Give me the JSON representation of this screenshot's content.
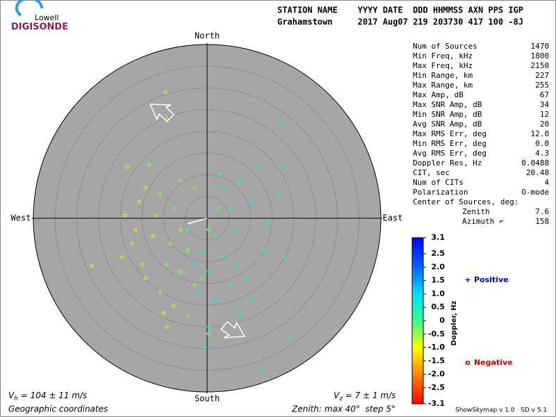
{
  "header": {
    "logo_top": "Lowell",
    "logo_main": "DIGISONDE",
    "line1": "STATION NAME    YYYY DATE  DDD HHMMSS AXN PPS IGP",
    "line2": "Grahamstown     2017 Aug07 219 203730 417 100 -8J"
  },
  "stats": {
    "rows": [
      [
        "Num of Sources",
        "1470"
      ],
      [
        "Min Freq, kHz",
        "1800"
      ],
      [
        "Max Freq, kHz",
        "2150"
      ],
      [
        "Min Range, km",
        "227"
      ],
      [
        "Max Range, km",
        "255"
      ],
      [
        "Max Amp, dB",
        "67"
      ],
      [
        "Max SNR Amp, dB",
        "34"
      ],
      [
        "Min SNR Amp, dB",
        "12"
      ],
      [
        "Avg SNR Amp, dB",
        "20"
      ],
      [
        "Max RMS Err, deg",
        "12.0"
      ],
      [
        "Min RMS Err, deg",
        "0.0"
      ],
      [
        "Avg RMS Err, deg",
        "4.3"
      ],
      [
        "Doppler Res, Hz",
        "0.0488"
      ],
      [
        "CIT, sec",
        "20.48"
      ],
      [
        "Num of CITs",
        "4"
      ],
      [
        "Polarization",
        "O-mode"
      ]
    ],
    "center_title": "Center of Sources, deg:",
    "center_rows": [
      [
        "Zenith",
        "7.6"
      ],
      [
        "Azimuth ↶",
        "158"
      ]
    ]
  },
  "chart_data": {
    "type": "skymap",
    "directions": {
      "north": "North",
      "south": "South",
      "west": "West",
      "east": "East"
    },
    "rmax": 40,
    "ring_step": 5,
    "series": [
      {
        "name": "Positive",
        "marker": "+",
        "legend_color": "#0000c0",
        "x": [
          17.1,
          17.6,
          11.5,
          7.5,
          9.9,
          13.9,
          16.3,
          5.1,
          1.9,
          3.5,
          6.7,
          0.3,
          5.1,
          9.1,
          13.1,
          17.9,
          1.9,
          0.3,
          -0.5,
          12.3,
          19.2,
          -1.3,
          -2.9,
          2.7,
          6.7,
          10.7,
          -2.1,
          7.5,
          -4.5,
          3.5
        ],
        "y": [
          21.9,
          12.3,
          11.8,
          8.6,
          3.8,
          -1.0,
          5.4,
          2.2,
          -4.2,
          -8.8,
          -10.6,
          -12.2,
          -15.4,
          -13.8,
          -7.4,
          -9.0,
          -18.6,
          -25.0,
          -29.8,
          -35.0,
          -27.4,
          -7.4,
          -10.6,
          10.2,
          -2.6,
          -18.6,
          -17.0,
          -21.8,
          -2.6,
          7.0
        ],
        "doppler": [
          0.3,
          0.5,
          0.4,
          0.2,
          0.6,
          0.3,
          0.2,
          0.1,
          0.4,
          0.5,
          0.3,
          0.6,
          0.2,
          0.4,
          0.5,
          0.3,
          0.7,
          0.2,
          0.1,
          0.4,
          0.3,
          0.5,
          0.6,
          0.2,
          0.3,
          0.4,
          0.5,
          0.2,
          0.1,
          0.3
        ]
      },
      {
        "name": "Negative",
        "marker": "o",
        "legend_color": "#d00000",
        "x": [
          -9.6,
          -9.3,
          -18.4,
          -13.3,
          -18.9,
          -15.7,
          -10.9,
          -7.7,
          -6.1,
          -12.5,
          -17.3,
          -19.7,
          -26.6,
          -14.1,
          -9.3,
          -4.5,
          -2.9,
          -10.9,
          -7.7,
          -4.5,
          -9.3,
          0.3,
          -1.3,
          -14.1,
          -6.1,
          -2.9,
          -11.7,
          -16.5,
          -14.9,
          -6.1,
          -8.5,
          0.3,
          2.7,
          -10.1
        ],
        "y": [
          29.0,
          23.0,
          11.8,
          12.3,
          0.6,
          3.8,
          5.4,
          2.2,
          -2.6,
          -4.2,
          -5.8,
          -9.0,
          -11.0,
          -13.8,
          -10.6,
          -7.4,
          -15.4,
          -17.0,
          -20.2,
          -22.6,
          -25.0,
          -26.6,
          -13.8,
          7.0,
          8.6,
          7.0,
          0.6,
          -2.6,
          -10.6,
          -12.2,
          -5.8,
          -2.6,
          2.2,
          -21.8
        ],
        "doppler": [
          -0.8,
          -0.7,
          -0.9,
          -0.6,
          -1.0,
          -0.8,
          -0.5,
          -0.4,
          -0.6,
          -0.9,
          -0.7,
          -1.1,
          -0.9,
          -0.8,
          -0.5,
          -0.4,
          -0.6,
          -0.7,
          -0.8,
          -0.5,
          -0.9,
          -0.4,
          -0.3,
          -0.8,
          -0.5,
          -0.4,
          -0.7,
          -1.0,
          -0.8,
          -0.6,
          -0.5,
          -0.3,
          -0.2,
          -0.9
        ]
      }
    ],
    "colorbar": {
      "title": "Doppler, Hz",
      "clim": [
        -3.1,
        3.1
      ],
      "ticks": [
        3.1,
        2.5,
        {
          "value": 2.0,
          "label": "2.0"
        },
        1.5,
        {
          "value": 1.0,
          "label": "1.0"
        },
        0.5,
        0,
        -0.5,
        {
          "value": -1.0,
          "label": "-1.0"
        },
        -1.5,
        {
          "value": -2.0,
          "label": "-2.0"
        },
        -2.5,
        -3.1
      ]
    },
    "vh": [
      "V",
      "h",
      " = 104 ± 11 m/s"
    ],
    "vz": [
      "V",
      "z",
      " = 7 ± 1 m/s"
    ],
    "coords": "Geographic coordinates",
    "zenith_note": "Zenith: max 40°  step 5°",
    "version": "ShowSkymap v 1.0   SD v 5.1"
  }
}
